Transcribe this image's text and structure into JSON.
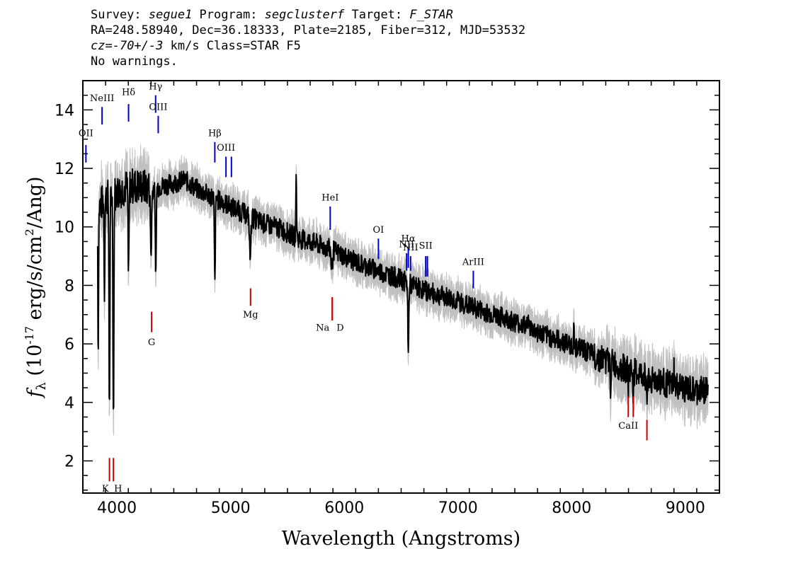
{
  "header": {
    "survey_label": "Survey: ",
    "survey": "segue1",
    "program_label": " Program: ",
    "program": "segclusterf",
    "target_label": " Target: ",
    "target": "F_STAR",
    "line2": "RA=248.58940, Dec=36.18333, Plate=2185, Fiber=312, MJD=53532",
    "cz_label": "cz=",
    "cz": "-70+/-3",
    "cz_suffix": " km/s Class=STAR F5",
    "warnings": "No warnings."
  },
  "colors": {
    "flux": "#000000",
    "error": "#c0c0c0",
    "emission": "#0000cc",
    "absorption": "#cc0000"
  },
  "chart_data": {
    "type": "line",
    "xlabel": "Wavelength (Angstroms)",
    "ylabel": "f_λ (10^-17 erg/s/cm^2/Ang)",
    "xlim": [
      3700,
      9300
    ],
    "ylim": [
      0.9,
      15.0
    ],
    "xticks": [
      "4000",
      "5000",
      "6000",
      "7000",
      "8000",
      "9000"
    ],
    "yticks": [
      "2",
      "4",
      "6",
      "8",
      "10",
      "12",
      "14"
    ],
    "grid": false,
    "continuum": [
      [
        3830,
        10.6
      ],
      [
        3900,
        11.0
      ],
      [
        4000,
        11.2
      ],
      [
        4100,
        11.4
      ],
      [
        4200,
        11.4
      ],
      [
        4300,
        11.3
      ],
      [
        4400,
        11.4
      ],
      [
        4500,
        11.5
      ],
      [
        4600,
        11.6
      ],
      [
        4700,
        11.3
      ],
      [
        4800,
        11.1
      ],
      [
        4900,
        10.9
      ],
      [
        5000,
        10.7
      ],
      [
        5100,
        10.5
      ],
      [
        5200,
        10.3
      ],
      [
        5300,
        10.1
      ],
      [
        5400,
        10.0
      ],
      [
        5500,
        9.8
      ],
      [
        5600,
        9.6
      ],
      [
        5700,
        9.5
      ],
      [
        5800,
        9.35
      ],
      [
        5900,
        9.2
      ],
      [
        6000,
        9.0
      ],
      [
        6100,
        8.8
      ],
      [
        6200,
        8.65
      ],
      [
        6300,
        8.5
      ],
      [
        6400,
        8.35
      ],
      [
        6500,
        8.2
      ],
      [
        6600,
        8.0
      ],
      [
        6700,
        7.85
      ],
      [
        6800,
        7.7
      ],
      [
        6900,
        7.6
      ],
      [
        7000,
        7.45
      ],
      [
        7100,
        7.3
      ],
      [
        7200,
        7.15
      ],
      [
        7300,
        7.0
      ],
      [
        7400,
        6.9
      ],
      [
        7500,
        6.75
      ],
      [
        7600,
        6.6
      ],
      [
        7700,
        6.4
      ],
      [
        7800,
        6.25
      ],
      [
        7900,
        6.1
      ],
      [
        8000,
        5.95
      ],
      [
        8100,
        5.8
      ],
      [
        8200,
        5.6
      ],
      [
        8300,
        5.45
      ],
      [
        8400,
        5.25
      ],
      [
        8500,
        5.1
      ],
      [
        8600,
        4.95
      ],
      [
        8700,
        4.8
      ],
      [
        8800,
        4.7
      ],
      [
        8900,
        4.55
      ],
      [
        9000,
        4.45
      ],
      [
        9100,
        4.35
      ],
      [
        9200,
        4.5
      ]
    ],
    "absorption_features": [
      [
        3835,
        5.0,
        3
      ],
      [
        3890,
        3.3,
        3
      ],
      [
        3934,
        7.5,
        4
      ],
      [
        3969,
        7.7,
        4
      ],
      [
        4102,
        3.2,
        4
      ],
      [
        4300,
        2.3,
        5
      ],
      [
        4341,
        3.2,
        4
      ],
      [
        4861,
        3.0,
        4
      ],
      [
        5172,
        1.4,
        6
      ],
      [
        5890,
        0.8,
        5
      ],
      [
        6563,
        2.5,
        4
      ],
      [
        8342,
        0.9,
        3
      ],
      [
        8498,
        0.7,
        3
      ],
      [
        8542,
        0.8,
        3
      ],
      [
        8662,
        0.9,
        3
      ]
    ],
    "spikes": [
      [
        5577,
        2.2
      ],
      [
        7620,
        0.7
      ],
      [
        8020,
        0.6
      ],
      [
        8900,
        0.6
      ]
    ],
    "noise_amp": 0.35,
    "error_band": 0.5,
    "emission_lines": [
      {
        "label": "OII",
        "wave": 3727,
        "y_bottom": 12.2,
        "y_top": 12.8,
        "label_y": 13.1
      },
      {
        "label": "NeIII",
        "wave": 3869,
        "y_bottom": 13.5,
        "y_top": 14.1,
        "label_y": 14.3
      },
      {
        "label": "Hδ",
        "wave": 4102,
        "y_bottom": 13.6,
        "y_top": 14.2,
        "label_y": 14.5
      },
      {
        "label": "Hγ",
        "wave": 4340,
        "y_bottom": 13.9,
        "y_top": 14.5,
        "label_y": 14.7
      },
      {
        "label": "OIII",
        "wave": 4363,
        "y_bottom": 13.2,
        "y_top": 13.8,
        "label_y": 14.0
      },
      {
        "label": "Hβ",
        "wave": 4861,
        "y_bottom": 12.2,
        "y_top": 12.9,
        "label_y": 13.1
      },
      {
        "label": "OIII",
        "wave": 4959,
        "y_bottom": 11.7,
        "y_top": 12.4,
        "label_y": 12.6
      },
      {
        "label": "",
        "wave": 5007,
        "y_bottom": 11.7,
        "y_top": 12.4,
        "label_y": 12.6
      },
      {
        "label": "HeI",
        "wave": 5876,
        "y_bottom": 9.9,
        "y_top": 10.7,
        "label_y": 10.9
      },
      {
        "label": "OI",
        "wave": 6300,
        "y_bottom": 8.9,
        "y_top": 9.6,
        "label_y": 9.8
      },
      {
        "label": "NII",
        "wave": 6548,
        "y_bottom": 8.5,
        "y_top": 9.1,
        "label_y": 9.3
      },
      {
        "label": "Hα",
        "wave": 6563,
        "y_bottom": 8.6,
        "y_top": 9.3,
        "label_y": 9.5
      },
      {
        "label": "NII",
        "wave": 6583,
        "y_bottom": 8.5,
        "y_top": 9.0,
        "label_y": 9.2
      },
      {
        "label": "SII",
        "wave": 6716,
        "y_bottom": 8.3,
        "y_top": 9.0,
        "label_y": 9.25
      },
      {
        "label": "",
        "wave": 6731,
        "y_bottom": 8.3,
        "y_top": 9.0,
        "label_y": 9.25
      },
      {
        "label": "ArIII",
        "wave": 7135,
        "y_bottom": 7.9,
        "y_top": 8.5,
        "label_y": 8.7
      }
    ],
    "absorption_lines": [
      {
        "label": "K",
        "wave": 3934,
        "y_bottom": 1.3,
        "y_top": 2.1,
        "label_y": 0.95
      },
      {
        "label": "H",
        "wave": 3969,
        "y_bottom": 1.3,
        "y_top": 2.1,
        "label_y": 0.95
      },
      {
        "label": "G",
        "wave": 4305,
        "y_bottom": 6.4,
        "y_top": 7.1,
        "label_y": 5.95
      },
      {
        "label": "Mg",
        "wave": 5175,
        "y_bottom": 7.3,
        "y_top": 7.9,
        "label_y": 6.9
      },
      {
        "label": "Na",
        "wave": 5894,
        "y_bottom": 6.8,
        "y_top": 7.6,
        "label_y": 6.45
      },
      {
        "label": "D",
        "wave": 5894,
        "y_bottom": 6.8,
        "y_top": 7.6,
        "label_y": 6.45
      },
      {
        "label": "CaII",
        "wave": 8498,
        "y_bottom": 3.5,
        "y_top": 4.2,
        "label_y": 3.1
      },
      {
        "label": "",
        "wave": 8542,
        "y_bottom": 3.5,
        "y_top": 4.2,
        "label_y": 3.1
      },
      {
        "label": "",
        "wave": 8662,
        "y_bottom": 2.7,
        "y_top": 3.4,
        "label_y": 2.4
      }
    ]
  }
}
